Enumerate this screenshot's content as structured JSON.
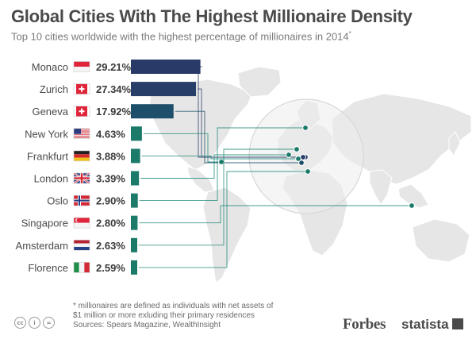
{
  "title": "Global Cities With The Highest Millionaire Density",
  "subtitle": "Top 10 cities worldwide with the highest percentage of millionaires in 2014",
  "subtitle_marker": "*",
  "footnote": {
    "line1": "* millionaires are defined as individuals with net assets of",
    "line2": "$1 million or more exluding their primary residences",
    "line3": "Sources: Spears Magazine, WealthInsight"
  },
  "brand": {
    "forbes": "Forbes",
    "statista": "statista"
  },
  "license_icons": [
    {
      "name": "cc-icon",
      "glyph": "cc"
    },
    {
      "name": "attribution-icon",
      "glyph": "i"
    },
    {
      "name": "noderivs-icon",
      "glyph": "="
    }
  ],
  "colors": {
    "top3": [
      "#2a3a68",
      "#263e68",
      "#1e4f6a"
    ],
    "other": "#1b7a6a",
    "leader": "#1e8a78",
    "map_land": "#e6e6e6",
    "highlight_circle": "#d8d8d8"
  },
  "chart_data": {
    "type": "bar",
    "orientation": "horizontal",
    "unit": "%",
    "categories": [
      "Monaco",
      "Zurich",
      "Geneva",
      "New York",
      "Frankfurt",
      "London",
      "Oslo",
      "Singapore",
      "Amsterdam",
      "Florence"
    ],
    "values": [
      29.21,
      27.34,
      17.92,
      4.63,
      3.88,
      3.39,
      2.9,
      2.8,
      2.63,
      2.59
    ],
    "value_labels": [
      "29.21%",
      "27.34%",
      "17.92%",
      "4.63%",
      "3.88%",
      "3.39%",
      "2.90%",
      "2.80%",
      "2.63%",
      "2.59%"
    ],
    "flags": [
      "monaco-flag",
      "switzerland-flag",
      "switzerland-flag",
      "usa-flag",
      "germany-flag",
      "uk-flag",
      "norway-flag",
      "singapore-flag",
      "netherlands-flag",
      "italy-flag"
    ],
    "xlim": [
      0,
      30
    ],
    "grid": false,
    "legend": "none"
  }
}
